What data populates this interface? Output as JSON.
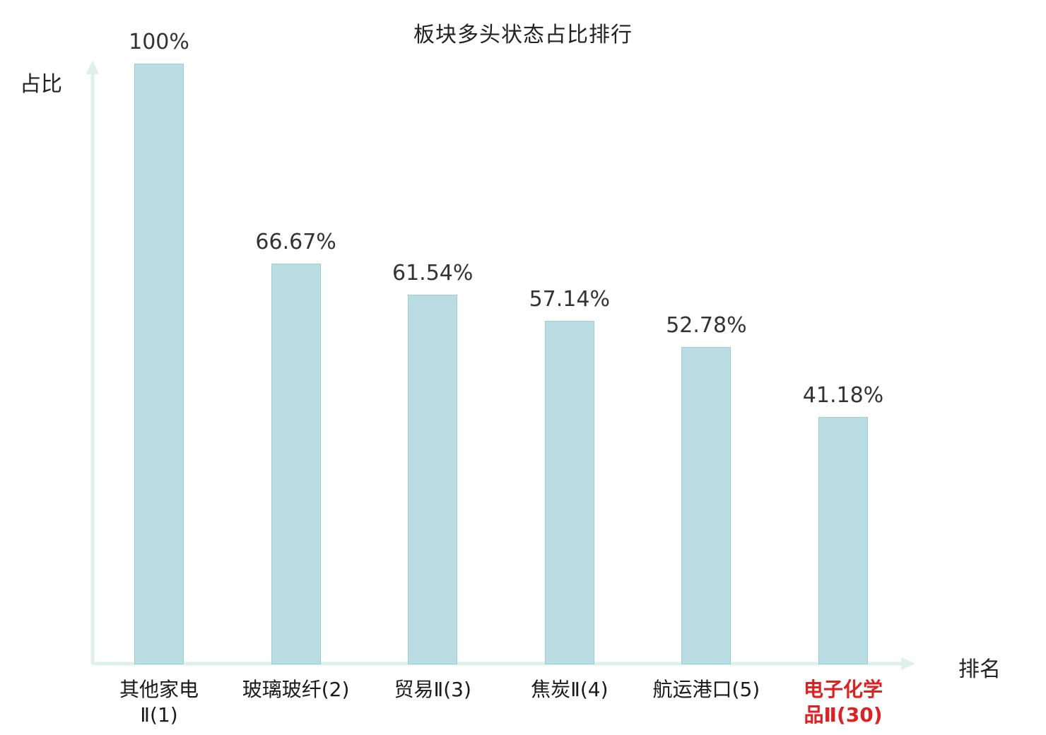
{
  "chart_data": {
    "type": "bar",
    "title": "板块多头状态占比排行",
    "ylabel": "占比",
    "xlabel": "排名",
    "categories": [
      "其他家电\nⅡ(1)",
      "玻璃玻纤(2)",
      "贸易Ⅱ(3)",
      "焦炭Ⅱ(4)",
      "航运港口(5)",
      "电子化学\n品Ⅱ(30)"
    ],
    "values": [
      100,
      66.67,
      61.54,
      57.14,
      52.78,
      41.18
    ],
    "value_labels": [
      "100%",
      "66.67%",
      "61.54%",
      "57.14%",
      "52.78%",
      "41.18%"
    ],
    "highlight_index": 5,
    "ylim": [
      0,
      100
    ],
    "legend": "none",
    "grid": "off",
    "colors": {
      "bar_fill": "#b9dde2",
      "bar_border": "#9ecdd6",
      "axis": "#ddf0ea",
      "value_label": "#333333",
      "category_label": "#1a1a1a",
      "highlight_label": "#e02020",
      "title": "#222222"
    }
  }
}
